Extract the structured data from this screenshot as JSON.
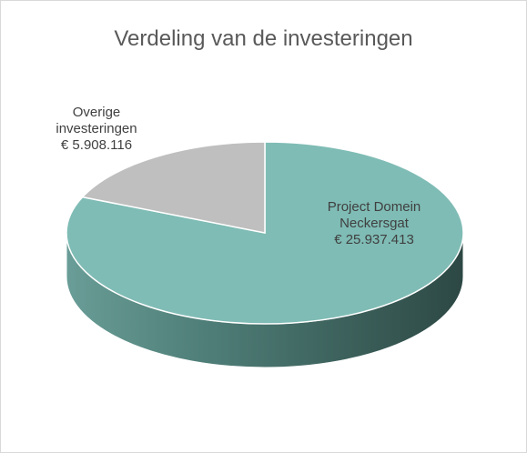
{
  "chart_data": {
    "type": "pie3d",
    "title": "Verdeling van de investeringen",
    "categories": [
      "Project Domein Neckersgat",
      "Overige investeringen"
    ],
    "values": [
      25937413,
      5908116
    ],
    "value_labels": [
      "€ 25.937.413",
      "€ 5.908.116"
    ],
    "colors": [
      "#7fbcb5",
      "#bfbfbf"
    ]
  }
}
